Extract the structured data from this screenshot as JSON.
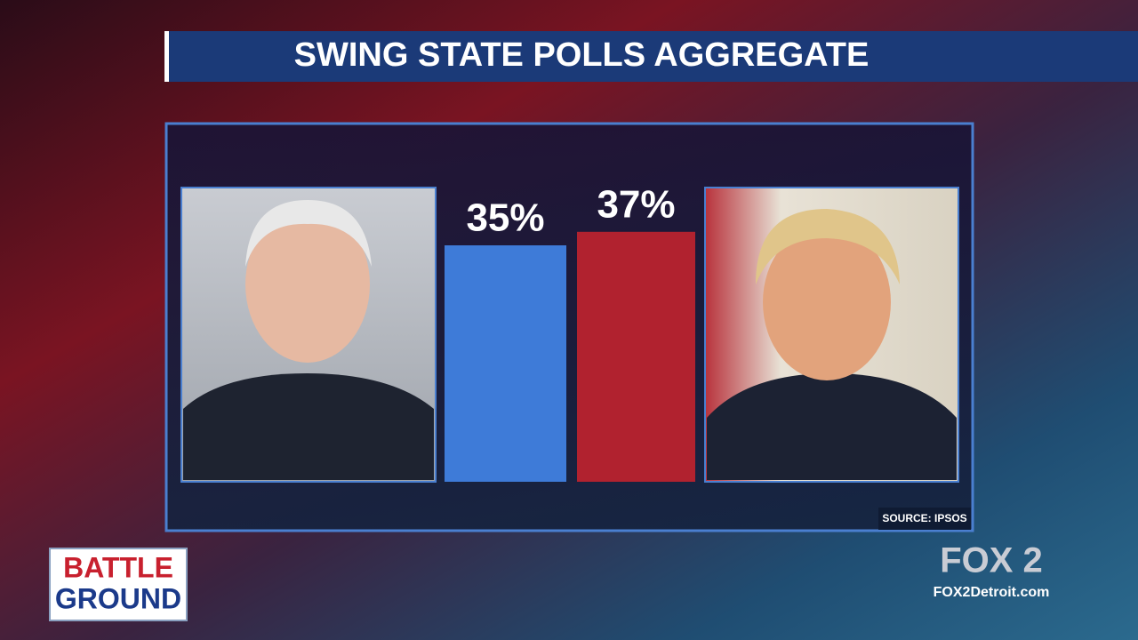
{
  "chart_data": {
    "type": "bar",
    "title": "SWING STATE POLLS AGGREGATE",
    "categories": [
      null,
      null
    ],
    "values": [
      35,
      37
    ],
    "value_labels": [
      "35%",
      "37%"
    ],
    "colors": [
      "#3e7bd8",
      "#b1222f"
    ],
    "source": "SOURCE: IPSOS"
  },
  "branding": {
    "show_name": [
      "BATTLE",
      "GROUND"
    ],
    "network": "FOX 2",
    "website": "FOX2Detroit.com"
  }
}
